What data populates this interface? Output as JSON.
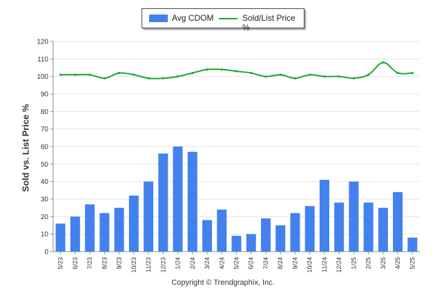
{
  "chart_data": {
    "type": "bar",
    "categories": [
      "5/23",
      "6/23",
      "7/23",
      "8/23",
      "9/23",
      "10/23",
      "11/23",
      "12/23",
      "1/24",
      "2/24",
      "3/24",
      "4/24",
      "5/24",
      "6/24",
      "7/24",
      "8/24",
      "9/24",
      "10/24",
      "11/24",
      "12/24",
      "1/25",
      "2/25",
      "3/25",
      "4/25",
      "5/25"
    ],
    "series": [
      {
        "name": "Avg CDOM",
        "type": "bar",
        "color": "#4381ee",
        "values": [
          16,
          20,
          27,
          22,
          25,
          32,
          40,
          56,
          60,
          57,
          18,
          24,
          9,
          10,
          19,
          15,
          22,
          26,
          41,
          28,
          40,
          28,
          25,
          34,
          8
        ]
      },
      {
        "name": "Sold/List Price %",
        "type": "line",
        "color": "#1aa82a",
        "values": [
          101,
          101,
          101,
          99,
          102,
          101,
          99,
          99,
          100,
          102,
          104,
          104,
          103,
          102,
          100,
          101,
          99,
          101,
          100,
          100,
          99,
          101,
          108,
          102,
          102
        ]
      }
    ],
    "ylabel": "Sold vs. List Price %",
    "ylim": [
      0,
      120
    ],
    "yticks": [
      0,
      10,
      20,
      30,
      40,
      50,
      60,
      70,
      80,
      90,
      100,
      110,
      120
    ],
    "grid": true,
    "legend_position": "top-center"
  },
  "legend": {
    "bar_label": "Avg CDOM",
    "line_label": "Sold/List Price %"
  },
  "footer": {
    "copyright": "Copyright © Trendgraphix, Inc."
  }
}
